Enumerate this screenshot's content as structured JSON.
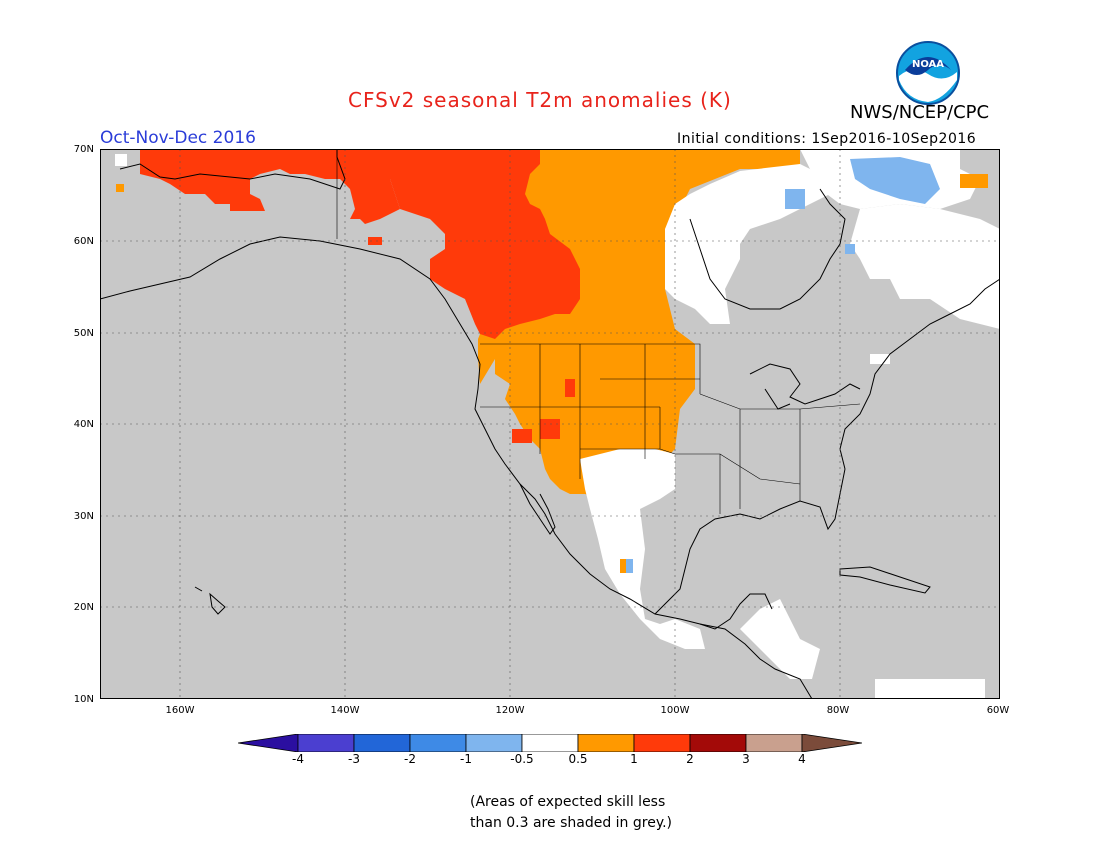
{
  "title": "CFSv2 seasonal T2m anomalies (K)",
  "agency": "NWS/NCEP/CPC",
  "season_label": "Oct-Nov-Dec 2016",
  "initial_conditions": "Initial conditions: 1Sep2016-10Sep2016",
  "logo_text": "NOAA",
  "lat_labels": [
    "70N",
    "60N",
    "50N",
    "40N",
    "30N",
    "20N",
    "10N"
  ],
  "lon_labels": [
    "160W",
    "140W",
    "120W",
    "100W",
    "80W",
    "60W"
  ],
  "colorbar": {
    "labels": [
      "-4",
      "-3",
      "-2",
      "-1",
      "-0.5",
      "0.5",
      "1",
      "2",
      "3",
      "4"
    ],
    "colors": [
      "#2b0fa0",
      "#4b3fd0",
      "#2266d8",
      "#3e8ae6",
      "#7fb5ee",
      "#ffffff",
      "#ff9900",
      "#ff3a0a",
      "#a30a08",
      "#c9a08e",
      "#7b4b3a"
    ]
  },
  "note_line1": "(Areas of expected skill less",
  "note_line2": "than 0.3 are shaded in grey.)",
  "colors": {
    "grey": "#c8c8c8",
    "orange": "#ff9900",
    "red": "#ff3a0a",
    "light_blue": "#7fb5ee",
    "white": "#ffffff",
    "title_red": "#e8231b",
    "season_blue": "#2a3cd8"
  }
}
